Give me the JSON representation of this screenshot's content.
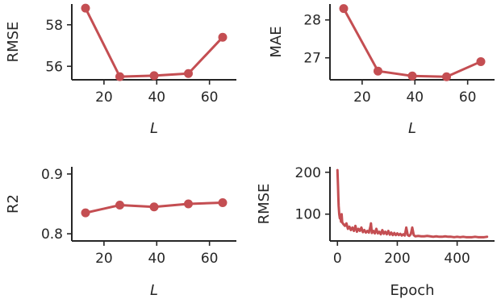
{
  "colors": {
    "series": "#c44e52",
    "axis": "#262626"
  },
  "chart_data": [
    {
      "id": "rmse-vs-l",
      "type": "line",
      "xlabel": "L",
      "ylabel": "RMSE",
      "x": [
        13,
        26,
        39,
        52,
        65
      ],
      "series": [
        {
          "values": [
            58.8,
            55.5,
            55.55,
            55.65,
            57.4
          ],
          "markers": true
        }
      ],
      "xlim": [
        7.8,
        70.2
      ],
      "ylim": [
        55.35,
        59.0
      ],
      "xticks": [
        20,
        40,
        60
      ],
      "yticks": [
        56,
        58
      ],
      "grid": false
    },
    {
      "id": "mae-vs-l",
      "type": "line",
      "xlabel": "L",
      "ylabel": "MAE",
      "x": [
        13,
        26,
        39,
        52,
        65
      ],
      "series": [
        {
          "values": [
            28.3,
            26.65,
            26.52,
            26.5,
            26.9
          ],
          "markers": true
        }
      ],
      "xlim": [
        7.8,
        70.2
      ],
      "ylim": [
        26.42,
        28.42
      ],
      "xticks": [
        20,
        40,
        60
      ],
      "yticks": [
        27,
        28
      ],
      "grid": false
    },
    {
      "id": "r2-vs-l",
      "type": "line",
      "xlabel": "L",
      "ylabel": "R2",
      "x": [
        13,
        26,
        39,
        52,
        65
      ],
      "series": [
        {
          "values": [
            0.835,
            0.848,
            0.845,
            0.85,
            0.852
          ],
          "markers": true
        }
      ],
      "xlim": [
        7.8,
        70.2
      ],
      "ylim": [
        0.788,
        0.912
      ],
      "xticks": [
        20,
        40,
        60
      ],
      "yticks": [
        0.8,
        0.9
      ],
      "ytick_decimals": 1,
      "grid": false
    },
    {
      "id": "rmse-vs-epoch",
      "type": "line",
      "xlabel": "Epoch",
      "ylabel": "RMSE",
      "x": [
        0,
        1,
        2,
        3,
        4,
        6,
        8,
        10,
        12,
        14,
        16,
        18,
        20,
        25,
        30,
        35,
        40,
        45,
        50,
        55,
        60,
        65,
        70,
        75,
        80,
        85,
        90,
        95,
        100,
        105,
        110,
        112,
        115,
        120,
        125,
        130,
        135,
        140,
        145,
        150,
        155,
        160,
        165,
        170,
        175,
        180,
        185,
        190,
        195,
        200,
        205,
        210,
        215,
        220,
        225,
        230,
        235,
        240,
        245,
        250,
        255,
        260,
        270,
        280,
        290,
        300,
        310,
        320,
        330,
        340,
        350,
        360,
        370,
        380,
        390,
        400,
        410,
        420,
        430,
        440,
        450,
        460,
        470,
        480,
        490,
        500
      ],
      "series": [
        {
          "values": [
            205,
            185,
            165,
            140,
            120,
            100,
            90,
            95,
            82,
            100,
            80,
            78,
            76,
            72,
            78,
            65,
            70,
            62,
            68,
            60,
            72,
            58,
            65,
            60,
            68,
            57,
            62,
            56,
            60,
            56,
            70,
            78,
            55,
            60,
            54,
            65,
            54,
            58,
            52,
            62,
            53,
            58,
            52,
            60,
            51,
            56,
            50,
            55,
            50,
            54,
            50,
            53,
            49,
            52,
            49,
            68,
            50,
            48,
            52,
            68,
            50,
            47,
            48,
            47,
            47,
            48,
            47,
            46,
            47,
            46,
            46,
            47,
            46,
            46,
            45,
            46,
            45,
            46,
            45,
            45,
            45,
            46,
            45,
            45,
            45,
            46
          ],
          "markers": false
        }
      ],
      "xlim": [
        -25,
        525
      ],
      "ylim": [
        36,
        213
      ],
      "xticks": [
        0,
        200,
        400
      ],
      "yticks": [
        100,
        200
      ],
      "grid": false
    }
  ]
}
